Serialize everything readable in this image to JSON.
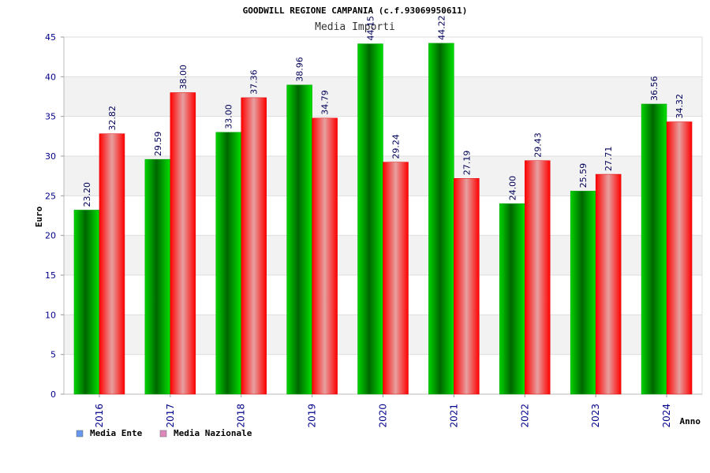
{
  "chart_data": {
    "type": "bar",
    "title": "GOODWILL REGIONE CAMPANIA (c.f.93069950611)",
    "subtitle": "Media Importi",
    "xlabel": "Anno",
    "ylabel": "Euro",
    "ylim": [
      0,
      45
    ],
    "yticks": [
      0,
      5,
      10,
      15,
      20,
      25,
      30,
      35,
      40,
      45
    ],
    "categories": [
      "2016",
      "2017",
      "2018",
      "2019",
      "2020",
      "2021",
      "2022",
      "2023",
      "2024"
    ],
    "series": [
      {
        "name": "Media Ente",
        "values": [
          23.2,
          29.59,
          33.0,
          38.96,
          44.15,
          44.22,
          24.0,
          25.59,
          36.56
        ],
        "labels": [
          "23.20",
          "29.59",
          "33.00",
          "38.96",
          "44.15",
          "44.22",
          "24.00",
          "25.59",
          "36.56"
        ],
        "color": "#00b300",
        "legend_color": "#6699ee"
      },
      {
        "name": "Media Nazionale",
        "values": [
          32.82,
          38.0,
          37.36,
          34.79,
          29.24,
          27.19,
          29.43,
          27.71,
          34.32
        ],
        "labels": [
          "32.82",
          "38.00",
          "37.36",
          "34.79",
          "29.24",
          "27.19",
          "29.43",
          "27.71",
          "34.32"
        ],
        "color": "#ff0000",
        "legend_color": "#dd88bb"
      }
    ],
    "grid": true,
    "legend_position": "bottom-left"
  }
}
